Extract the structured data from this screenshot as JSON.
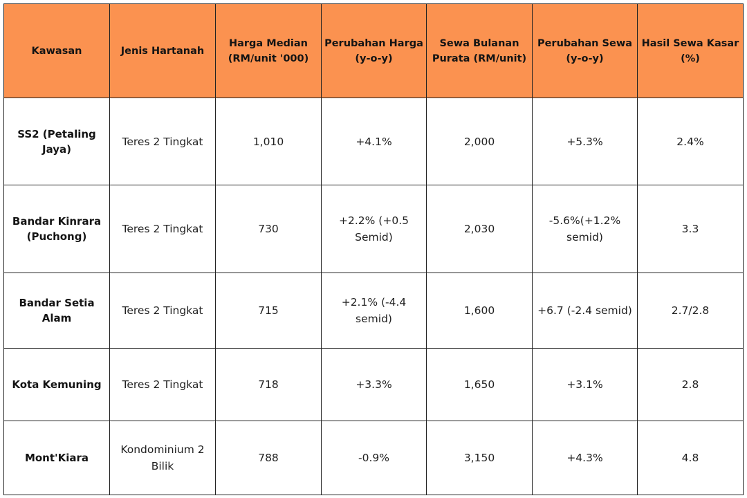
{
  "table": {
    "headers": [
      "Kawasan",
      "Jenis Hartanah",
      "Harga Median (RM/unit '000)",
      "Perubahan Harga (y-o-y)",
      "Sewa Bulanan Purata (RM/unit)",
      "Perubahan Sewa (y-o-y)",
      "Hasil Sewa Kasar (%)"
    ],
    "rows": [
      [
        "SS2 (Petaling Jaya)",
        "Teres 2 Tingkat",
        "1,010",
        "+4.1%",
        "2,000",
        "+5.3%",
        "2.4%"
      ],
      [
        "Bandar Kinrara (Puchong)",
        "Teres 2 Tingkat",
        "730",
        "+2.2% (+0.5 Semid)",
        "2,030",
        "-5.6%(+1.2% semid)",
        "3.3"
      ],
      [
        "Bandar Setia Alam",
        "Teres 2 Tingkat",
        "715",
        "+2.1% (-4.4 semid)",
        "1,600",
        "+6.7 (-2.4 semid)",
        "2.7/2.8"
      ],
      [
        "Kota Kemuning",
        "Teres 2 Tingkat",
        "718",
        "+3.3%",
        "1,650",
        "+3.1%",
        "2.8"
      ],
      [
        "Mont'Kiara",
        "Kondominium 2 Bilik",
        "788",
        "-0.9%",
        "3,150",
        "+4.3%",
        "4.8"
      ]
    ],
    "header_color": "#fb9250",
    "border_color": "#222222"
  }
}
